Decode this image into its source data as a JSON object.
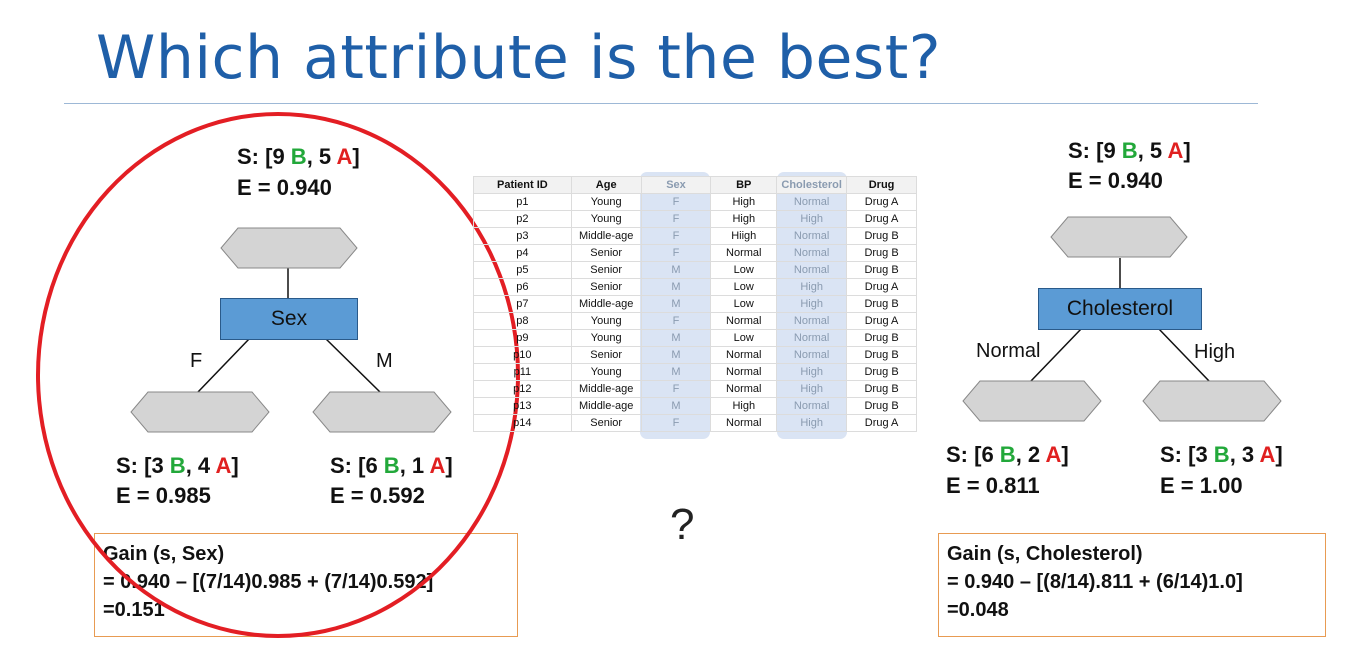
{
  "title": "Which attribute is the best?",
  "colors": {
    "title": "#1f5fa8",
    "b_class": "#22a83a",
    "a_class": "#e02020",
    "node_fill": "#5b9bd5",
    "gain_border": "#e89b52",
    "circle": "#e31e24"
  },
  "left_tree": {
    "root_s_prefix": "S: [9 ",
    "root_s_b": "B",
    "root_s_mid": ", 5 ",
    "root_s_a": "A",
    "root_s_suffix": "]",
    "root_e": "E = 0.940",
    "node_label": "Sex",
    "edge_left": "F",
    "edge_right": "M",
    "left_s_prefix": "S: [3 ",
    "left_s_b": "B",
    "left_s_mid": ", 4 ",
    "left_s_a": "A",
    "left_s_suffix": "]",
    "left_e": "E = 0.985",
    "right_s_prefix": "S: [6 ",
    "right_s_b": "B",
    "right_s_mid": ", 1 ",
    "right_s_a": "A",
    "right_s_suffix": "]",
    "right_e": "E = 0.592",
    "gain_line1": "Gain (s, Sex)",
    "gain_line2": "= 0.940 – [(7/14)0.985 + (7/14)0.592]",
    "gain_line3": "=0.151"
  },
  "right_tree": {
    "root_s_prefix": "S: [9 ",
    "root_s_b": "B",
    "root_s_mid": ", 5 ",
    "root_s_a": "A",
    "root_s_suffix": "]",
    "root_e": "E = 0.940",
    "node_label": "Cholesterol",
    "edge_left": "Normal",
    "edge_right": "High",
    "left_s_prefix": "S: [6 ",
    "left_s_b": "B",
    "left_s_mid": ", 2 ",
    "left_s_a": "A",
    "left_s_suffix": "]",
    "left_e": "E = 0.811",
    "right_s_prefix": "S: [3 ",
    "right_s_b": "B",
    "right_s_mid": ", 3 ",
    "right_s_a": "A",
    "right_s_suffix": "]",
    "right_e": "E = 1.00",
    "gain_line1": "Gain (s, Cholesterol)",
    "gain_line2": "= 0.940 – [(8/14).811 + (6/14)1.0]",
    "gain_line3": "=0.048"
  },
  "question_mark": "?",
  "table": {
    "headers": [
      "Patient ID",
      "Age",
      "Sex",
      "BP",
      "Cholesterol",
      "Drug"
    ],
    "rows": [
      [
        "p1",
        "Young",
        "F",
        "High",
        "Normal",
        "Drug A"
      ],
      [
        "p2",
        "Young",
        "F",
        "High",
        "High",
        "Drug A"
      ],
      [
        "p3",
        "Middle-age",
        "F",
        "Hiigh",
        "Normal",
        "Drug B"
      ],
      [
        "p4",
        "Senior",
        "F",
        "Normal",
        "Normal",
        "Drug B"
      ],
      [
        "p5",
        "Senior",
        "M",
        "Low",
        "Normal",
        "Drug B"
      ],
      [
        "p6",
        "Senior",
        "M",
        "Low",
        "High",
        "Drug A"
      ],
      [
        "p7",
        "Middle-age",
        "M",
        "Low",
        "High",
        "Drug B"
      ],
      [
        "p8",
        "Young",
        "F",
        "Normal",
        "Normal",
        "Drug A"
      ],
      [
        "p9",
        "Young",
        "M",
        "Low",
        "Normal",
        "Drug B"
      ],
      [
        "p10",
        "Senior",
        "M",
        "Normal",
        "Normal",
        "Drug B"
      ],
      [
        "p11",
        "Young",
        "M",
        "Normal",
        "High",
        "Drug B"
      ],
      [
        "p12",
        "Middle-age",
        "F",
        "Normal",
        "High",
        "Drug B"
      ],
      [
        "p13",
        "Middle-age",
        "M",
        "High",
        "Normal",
        "Drug B"
      ],
      [
        "p14",
        "Senior",
        "F",
        "Normal",
        "High",
        "Drug A"
      ]
    ],
    "highlighted_columns": [
      "Sex",
      "Cholesterol"
    ]
  }
}
